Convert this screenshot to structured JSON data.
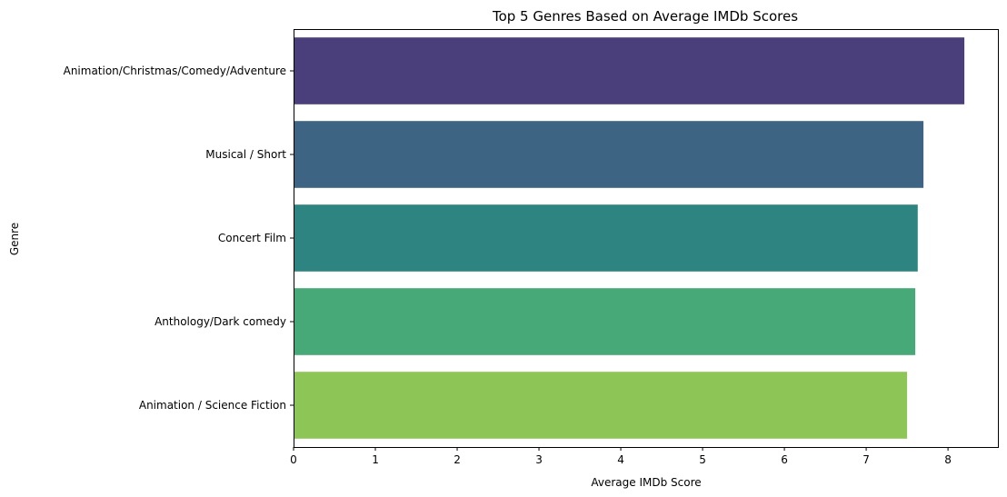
{
  "chart_data": {
    "type": "bar",
    "orientation": "horizontal",
    "title": "Top 5 Genres Based on Average IMDb Scores",
    "xlabel": "Average IMDb Score",
    "ylabel": "Genre",
    "categories": [
      "Animation/Christmas/Comedy/Adventure",
      "Musical / Short",
      "Concert Film",
      "Anthology/Dark comedy",
      "Animation / Science Fiction"
    ],
    "values": [
      8.2,
      7.7,
      7.63,
      7.6,
      7.5
    ],
    "colors": [
      "#4a3f7a",
      "#3d6583",
      "#2d8480",
      "#47a878",
      "#8dc656"
    ],
    "xlim": [
      0,
      8.61
    ],
    "xticks": [
      "0",
      "1",
      "2",
      "3",
      "4",
      "5",
      "6",
      "7",
      "8"
    ],
    "grid": false,
    "legend": "none"
  }
}
